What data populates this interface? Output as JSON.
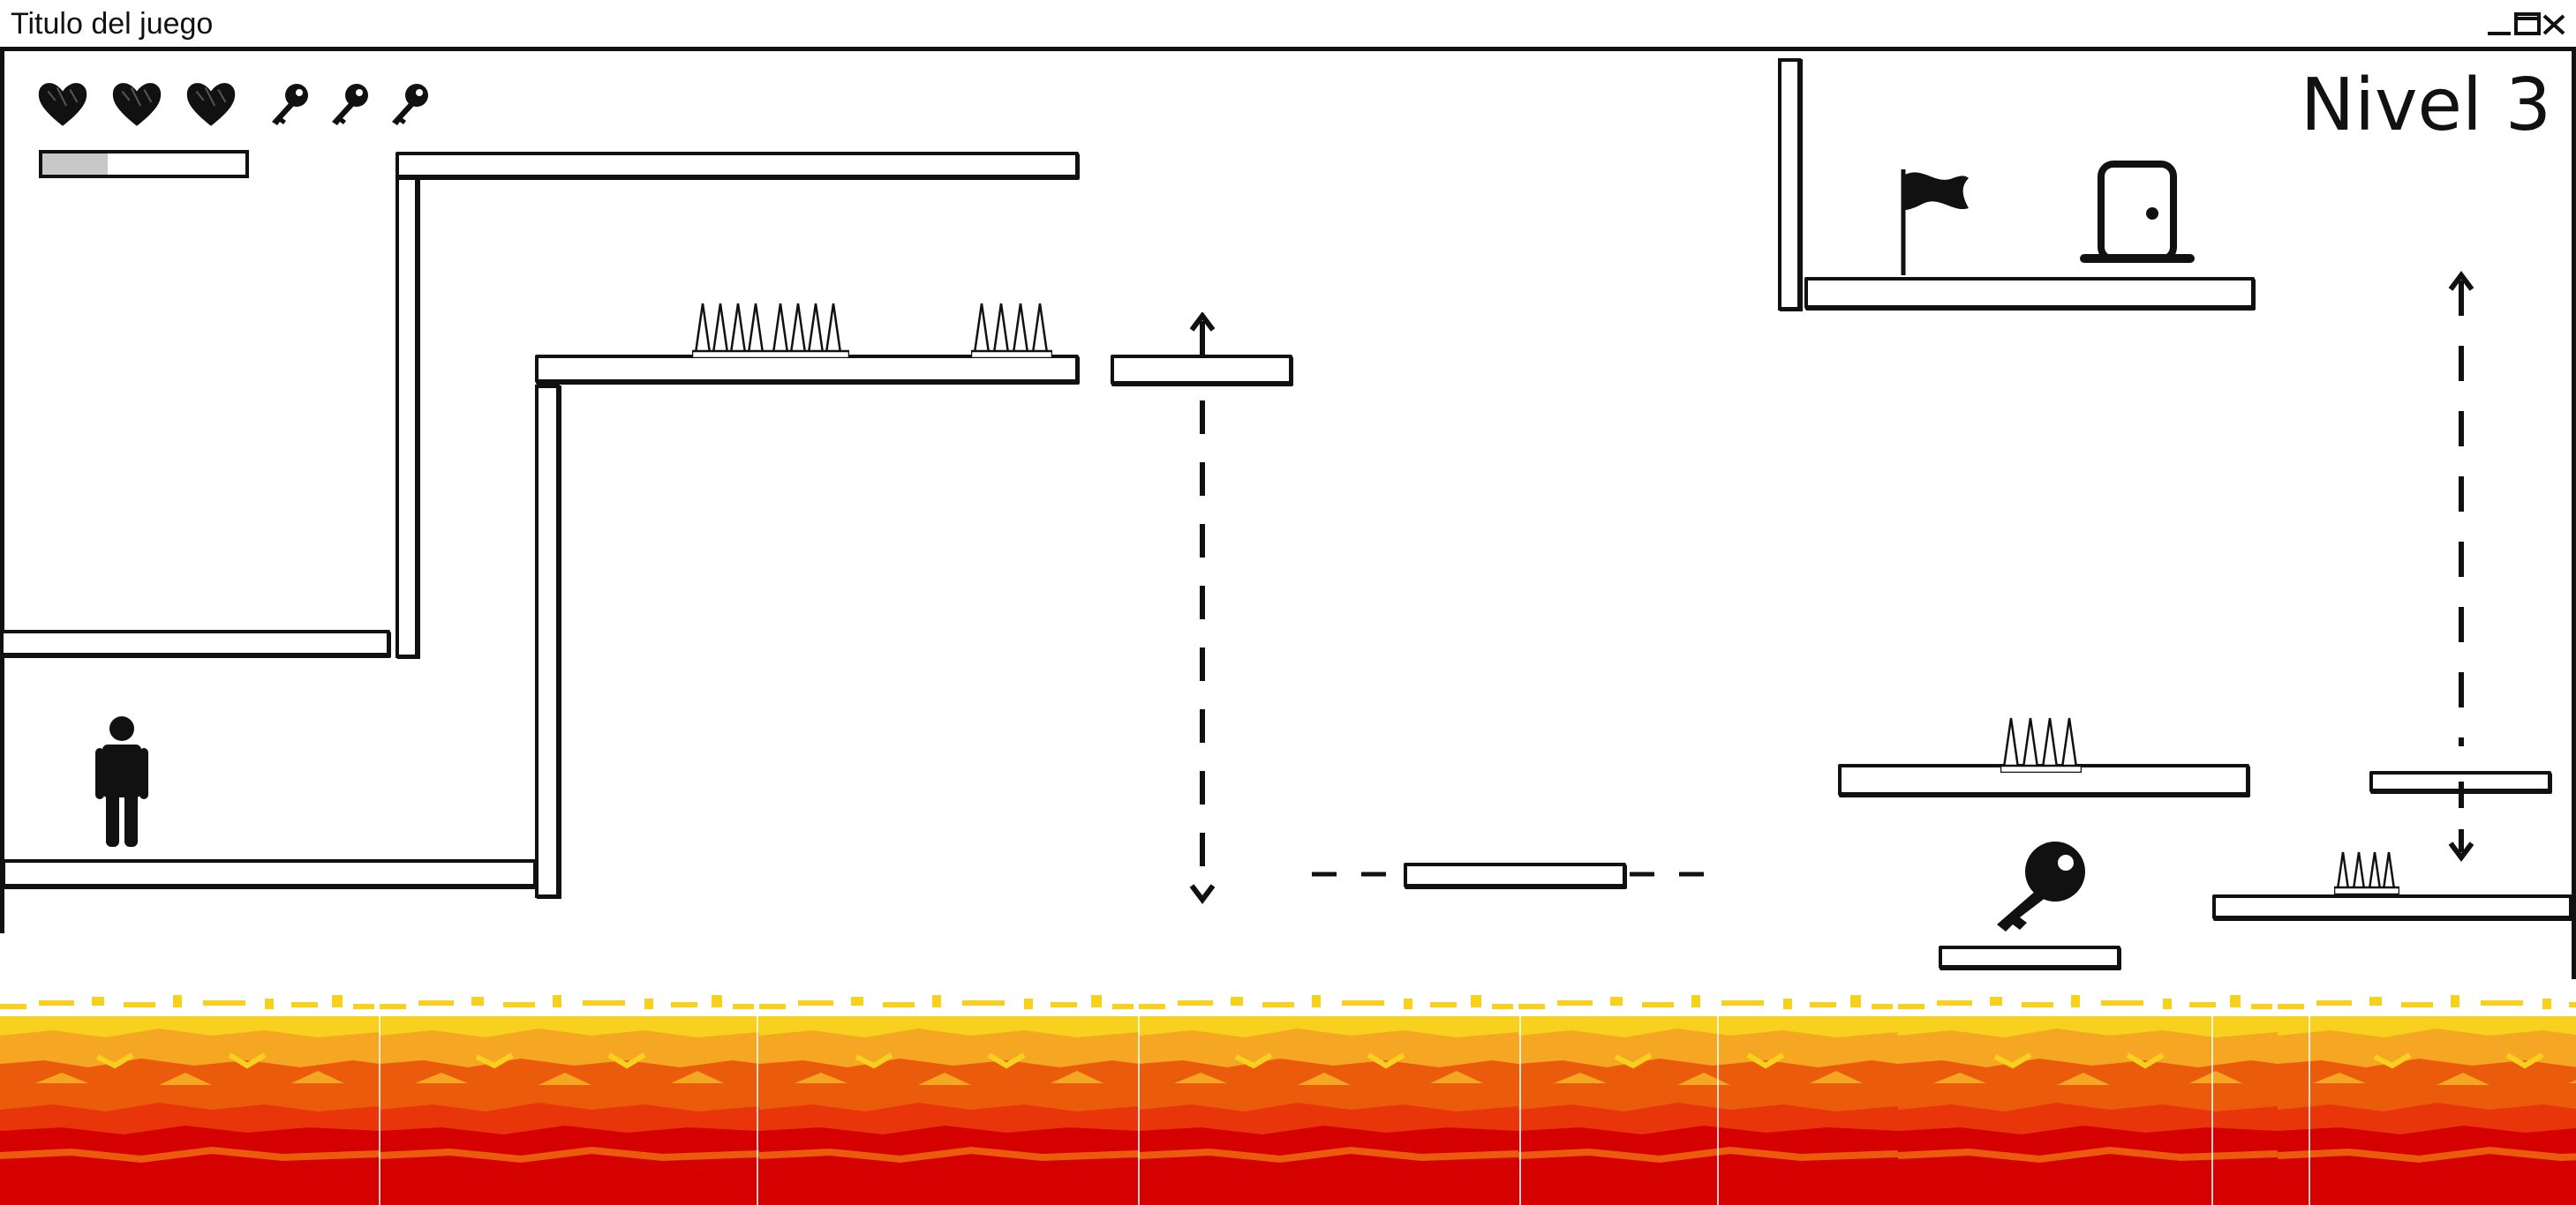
{
  "window": {
    "title": "Titulo del juego"
  },
  "hud": {
    "hearts": 3,
    "keys": 3,
    "progress": 0.32,
    "level_label": "Nivel 3"
  },
  "colors": {
    "lava_yellow": "#f7d11e",
    "lava_orange": "#f5a623",
    "lava_deep_orange": "#ea5b0c",
    "lava_red": "#d50000",
    "ink": "#111111",
    "progress_fill": "#c8c8c8"
  },
  "icons": [
    "heart-icon",
    "key-icon",
    "flag-icon",
    "door-icon",
    "player-icon",
    "spikes-icon",
    "minimize-icon",
    "maximize-icon",
    "close-icon"
  ]
}
